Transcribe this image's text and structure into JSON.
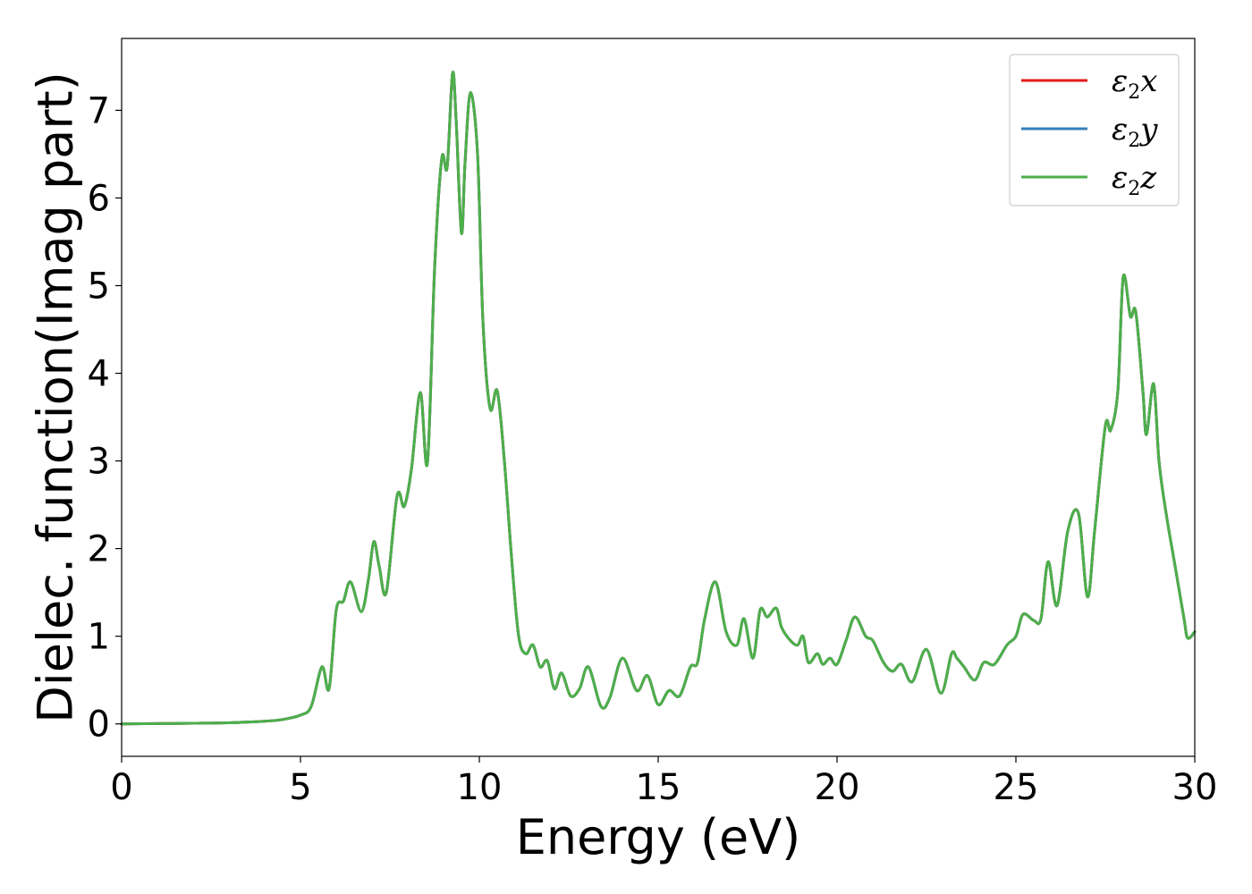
{
  "chart_data": {
    "type": "line",
    "xlabel": "Energy (eV)",
    "ylabel": "Dielec. function(Imag part)",
    "xlim": [
      0,
      30
    ],
    "ylim": [
      -0.37,
      7.82
    ],
    "xticks": [
      0,
      5,
      10,
      15,
      20,
      25,
      30
    ],
    "yticks": [
      0,
      1,
      2,
      3,
      4,
      5,
      6,
      7
    ],
    "grid": false,
    "legend_position": "top-right",
    "x": [
      0,
      1,
      2,
      3,
      4,
      4.5,
      5,
      5.3,
      5.6,
      5.8,
      6.0,
      6.2,
      6.4,
      6.7,
      6.9,
      7.05,
      7.2,
      7.4,
      7.7,
      7.9,
      8.1,
      8.35,
      8.55,
      8.75,
      8.95,
      9.1,
      9.25,
      9.35,
      9.5,
      9.6,
      9.75,
      9.95,
      10.1,
      10.3,
      10.5,
      10.7,
      10.9,
      11.1,
      11.3,
      11.5,
      11.7,
      11.9,
      12.1,
      12.3,
      12.55,
      12.8,
      13.05,
      13.4,
      13.65,
      14.0,
      14.4,
      14.7,
      15.0,
      15.3,
      15.6,
      15.9,
      16.1,
      16.3,
      16.6,
      16.9,
      17.2,
      17.4,
      17.65,
      17.85,
      18.05,
      18.3,
      18.45,
      18.7,
      18.9,
      19.05,
      19.2,
      19.45,
      19.6,
      19.8,
      20.0,
      20.25,
      20.5,
      20.8,
      21.0,
      21.3,
      21.55,
      21.8,
      22.1,
      22.5,
      22.9,
      23.2,
      23.35,
      23.55,
      23.85,
      24.1,
      24.4,
      24.75,
      25.0,
      25.2,
      25.5,
      25.7,
      25.9,
      26.15,
      26.45,
      26.75,
      27.0,
      27.2,
      27.5,
      27.65,
      27.85,
      28.0,
      28.2,
      28.35,
      28.55,
      28.65,
      28.85,
      29.0,
      29.2,
      29.45,
      29.7,
      29.8,
      30.0
    ],
    "series": [
      {
        "name": "ε2x",
        "color": "#e41a1c",
        "values": [
          0.0,
          0.003,
          0.007,
          0.013,
          0.03,
          0.05,
          0.1,
          0.2,
          0.65,
          0.4,
          1.3,
          1.4,
          1.62,
          1.28,
          1.65,
          2.08,
          1.8,
          1.5,
          2.6,
          2.48,
          2.9,
          3.78,
          2.98,
          5.2,
          6.45,
          6.35,
          7.42,
          6.9,
          5.6,
          6.4,
          7.2,
          6.5,
          4.6,
          3.6,
          3.8,
          3.0,
          1.9,
          1.0,
          0.8,
          0.9,
          0.65,
          0.72,
          0.4,
          0.58,
          0.32,
          0.4,
          0.65,
          0.2,
          0.3,
          0.75,
          0.38,
          0.55,
          0.22,
          0.38,
          0.32,
          0.65,
          0.7,
          1.2,
          1.62,
          1.05,
          0.9,
          1.2,
          0.75,
          1.3,
          1.22,
          1.32,
          1.1,
          0.95,
          0.9,
          1.0,
          0.7,
          0.8,
          0.68,
          0.75,
          0.68,
          0.95,
          1.22,
          1.0,
          0.95,
          0.7,
          0.6,
          0.68,
          0.48,
          0.85,
          0.35,
          0.8,
          0.75,
          0.65,
          0.5,
          0.7,
          0.68,
          0.9,
          1.0,
          1.25,
          1.18,
          1.2,
          1.85,
          1.35,
          2.2,
          2.4,
          1.45,
          2.2,
          3.4,
          3.35,
          3.8,
          5.1,
          4.65,
          4.7,
          3.8,
          3.3,
          3.88,
          3.0,
          2.4,
          1.8,
          1.2,
          0.98,
          1.05
        ]
      },
      {
        "name": "ε2y",
        "color": "#377eb8",
        "values": [
          0.0,
          0.003,
          0.007,
          0.013,
          0.03,
          0.05,
          0.1,
          0.2,
          0.65,
          0.4,
          1.3,
          1.4,
          1.62,
          1.28,
          1.65,
          2.08,
          1.8,
          1.5,
          2.6,
          2.48,
          2.9,
          3.78,
          2.98,
          5.2,
          6.45,
          6.35,
          7.42,
          6.9,
          5.6,
          6.4,
          7.2,
          6.5,
          4.6,
          3.6,
          3.8,
          3.0,
          1.9,
          1.0,
          0.8,
          0.9,
          0.65,
          0.72,
          0.4,
          0.58,
          0.32,
          0.4,
          0.65,
          0.2,
          0.3,
          0.75,
          0.38,
          0.55,
          0.22,
          0.38,
          0.32,
          0.65,
          0.7,
          1.2,
          1.62,
          1.05,
          0.9,
          1.2,
          0.75,
          1.3,
          1.22,
          1.32,
          1.1,
          0.95,
          0.9,
          1.0,
          0.7,
          0.8,
          0.68,
          0.75,
          0.68,
          0.95,
          1.22,
          1.0,
          0.95,
          0.7,
          0.6,
          0.68,
          0.48,
          0.85,
          0.35,
          0.8,
          0.75,
          0.65,
          0.5,
          0.7,
          0.68,
          0.9,
          1.0,
          1.25,
          1.18,
          1.2,
          1.85,
          1.35,
          2.2,
          2.4,
          1.45,
          2.2,
          3.4,
          3.35,
          3.8,
          5.1,
          4.65,
          4.7,
          3.8,
          3.3,
          3.88,
          3.0,
          2.4,
          1.8,
          1.2,
          0.98,
          1.05
        ]
      },
      {
        "name": "ε2z",
        "color": "#4daf4a",
        "values": [
          0.0,
          0.003,
          0.007,
          0.013,
          0.03,
          0.05,
          0.1,
          0.2,
          0.65,
          0.4,
          1.3,
          1.4,
          1.62,
          1.28,
          1.65,
          2.08,
          1.8,
          1.5,
          2.6,
          2.48,
          2.9,
          3.78,
          2.98,
          5.2,
          6.45,
          6.35,
          7.42,
          6.9,
          5.6,
          6.4,
          7.2,
          6.5,
          4.6,
          3.6,
          3.8,
          3.0,
          1.9,
          1.0,
          0.8,
          0.9,
          0.65,
          0.72,
          0.4,
          0.58,
          0.32,
          0.4,
          0.65,
          0.2,
          0.3,
          0.75,
          0.38,
          0.55,
          0.22,
          0.38,
          0.32,
          0.65,
          0.7,
          1.2,
          1.62,
          1.05,
          0.9,
          1.2,
          0.75,
          1.3,
          1.22,
          1.32,
          1.1,
          0.95,
          0.9,
          1.0,
          0.7,
          0.8,
          0.68,
          0.75,
          0.68,
          0.95,
          1.22,
          1.0,
          0.95,
          0.7,
          0.6,
          0.68,
          0.48,
          0.85,
          0.35,
          0.8,
          0.75,
          0.65,
          0.5,
          0.7,
          0.68,
          0.9,
          1.0,
          1.25,
          1.18,
          1.2,
          1.85,
          1.35,
          2.2,
          2.4,
          1.45,
          2.2,
          3.4,
          3.35,
          3.8,
          5.1,
          4.65,
          4.7,
          3.8,
          3.3,
          3.88,
          3.0,
          2.4,
          1.8,
          1.2,
          0.98,
          1.05
        ]
      }
    ]
  },
  "legend": {
    "entries": [
      {
        "base": "ε",
        "sub": "2",
        "axis": "x"
      },
      {
        "base": "ε",
        "sub": "2",
        "axis": "y"
      },
      {
        "base": "ε",
        "sub": "2",
        "axis": "z"
      }
    ]
  }
}
